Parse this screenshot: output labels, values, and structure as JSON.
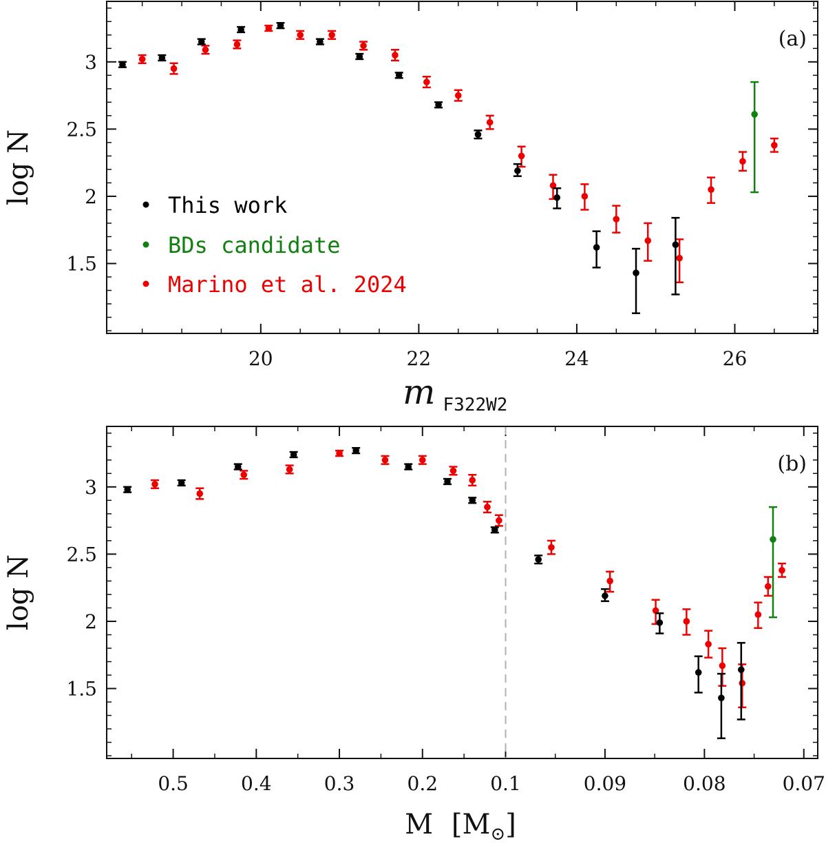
{
  "colors": {
    "this_work": "#000000",
    "bd_candidate": "#108010",
    "marino": "#ee0000",
    "divider": "#b0b0b0"
  },
  "chart_data": [
    {
      "type": "scatter",
      "panel_label": "(a)",
      "xlabel": "m",
      "xlabel_sub": "F322W2",
      "ylabel": "log N",
      "xlim": [
        18.05,
        27.05
      ],
      "ylim": [
        0.98,
        3.45
      ],
      "x_ticks": [
        20,
        22,
        24,
        26
      ],
      "x_tick_labels": [
        "20",
        "22",
        "24",
        "26"
      ],
      "y_ticks": [
        1.5,
        2,
        2.5,
        3
      ],
      "y_tick_labels": [
        "1.5",
        "2",
        "2.5",
        "3"
      ],
      "legend": {
        "position": "left-center",
        "entries": [
          {
            "label": "This work",
            "series": "this_work"
          },
          {
            "label": "BDs candidate",
            "series": "bd_candidate"
          },
          {
            "label": "Marino et al. 2024",
            "series": "marino"
          }
        ]
      },
      "series": [
        {
          "name": "This work",
          "key": "this_work",
          "x": [
            18.25,
            18.75,
            19.25,
            19.75,
            20.25,
            20.75,
            21.25,
            21.75,
            22.25,
            22.75,
            23.25,
            23.75,
            24.25,
            24.75,
            25.25
          ],
          "y": [
            2.98,
            3.03,
            3.15,
            3.24,
            3.27,
            3.15,
            3.04,
            2.9,
            2.68,
            2.46,
            2.19,
            1.99,
            1.62,
            1.43,
            1.64
          ],
          "err_lo": [
            0.02,
            0.02,
            0.02,
            0.02,
            0.02,
            0.02,
            0.02,
            0.02,
            0.02,
            0.03,
            0.04,
            0.08,
            0.15,
            0.3,
            0.37
          ],
          "err_hi": [
            0.02,
            0.02,
            0.02,
            0.02,
            0.02,
            0.02,
            0.02,
            0.02,
            0.02,
            0.03,
            0.05,
            0.07,
            0.12,
            0.18,
            0.2
          ]
        },
        {
          "name": "Marino et al. 2024",
          "key": "marino",
          "x": [
            18.5,
            18.9,
            19.3,
            19.7,
            20.1,
            20.5,
            20.9,
            21.3,
            21.7,
            22.1,
            22.5,
            22.9,
            23.3,
            23.7,
            24.1,
            24.5,
            24.9,
            25.3,
            25.7,
            26.1,
            26.5
          ],
          "y": [
            3.02,
            2.95,
            3.09,
            3.13,
            3.25,
            3.2,
            3.2,
            3.12,
            3.05,
            2.85,
            2.75,
            2.55,
            2.3,
            2.08,
            2.0,
            1.83,
            1.67,
            1.54,
            2.05,
            2.26,
            2.38
          ],
          "err_lo": [
            0.03,
            0.04,
            0.03,
            0.03,
            0.02,
            0.03,
            0.03,
            0.03,
            0.04,
            0.04,
            0.04,
            0.05,
            0.08,
            0.1,
            0.1,
            0.1,
            0.15,
            0.18,
            0.1,
            0.07,
            0.05
          ],
          "err_hi": [
            0.03,
            0.04,
            0.03,
            0.03,
            0.02,
            0.03,
            0.03,
            0.03,
            0.04,
            0.04,
            0.04,
            0.05,
            0.07,
            0.08,
            0.09,
            0.1,
            0.13,
            0.14,
            0.09,
            0.07,
            0.05
          ]
        },
        {
          "name": "BDs candidate",
          "key": "bd_candidate",
          "x": [
            26.25
          ],
          "y": [
            2.61
          ],
          "err_lo": [
            0.58
          ],
          "err_hi": [
            0.24
          ]
        }
      ]
    },
    {
      "type": "scatter",
      "panel_label": "(b)",
      "xlabel": "M",
      "xlabel_unit": "M",
      "xlabel_unit_sub": "⊙",
      "ylabel": "log N",
      "note": "Broken x axis: linear from 0.58 down to 0.1 on the left, expanded scale from 0.1 down to 0.07 on the right (dashed line at 0.1).",
      "x_segments": [
        {
          "from": 0.58,
          "to": 0.1
        },
        {
          "from": 0.1,
          "to": 0.0686
        }
      ],
      "ylim": [
        0.98,
        3.45
      ],
      "x_ticks": [
        0.5,
        0.4,
        0.3,
        0.2,
        0.1,
        0.09,
        0.08,
        0.07
      ],
      "x_tick_labels": [
        "0.5",
        "0.4",
        "0.3",
        "0.2",
        "0.1",
        "0.09",
        "0.08",
        "0.07"
      ],
      "x_minor_ticks": [
        0.55,
        0.45,
        0.35,
        0.25,
        0.15,
        0.095,
        0.085,
        0.075
      ],
      "y_ticks": [
        1.5,
        2,
        2.5,
        3
      ],
      "y_tick_labels": [
        "1.5",
        "2",
        "2.5",
        "3"
      ],
      "divider_x": 0.1,
      "series": [
        {
          "name": "This work",
          "key": "this_work",
          "x": [
            0.555,
            0.49,
            0.422,
            0.355,
            0.28,
            0.217,
            0.17,
            0.14,
            0.113,
            0.0967,
            0.09,
            0.0845,
            0.0806,
            0.0783,
            0.0763
          ],
          "y": [
            2.98,
            3.03,
            3.15,
            3.24,
            3.27,
            3.15,
            3.04,
            2.9,
            2.68,
            2.46,
            2.19,
            1.99,
            1.62,
            1.43,
            1.64
          ],
          "err_lo": [
            0.02,
            0.02,
            0.02,
            0.02,
            0.02,
            0.02,
            0.02,
            0.02,
            0.02,
            0.03,
            0.04,
            0.08,
            0.15,
            0.3,
            0.37
          ],
          "err_hi": [
            0.02,
            0.02,
            0.02,
            0.02,
            0.02,
            0.02,
            0.02,
            0.02,
            0.02,
            0.03,
            0.05,
            0.07,
            0.12,
            0.18,
            0.2
          ]
        },
        {
          "name": "Marino et al. 2024",
          "key": "marino",
          "x": [
            0.522,
            0.468,
            0.415,
            0.36,
            0.3,
            0.245,
            0.2,
            0.163,
            0.14,
            0.122,
            0.108,
            0.0954,
            0.0895,
            0.0849,
            0.0818,
            0.0796,
            0.0782,
            0.0762,
            0.0746,
            0.0736,
            0.0722
          ],
          "y": [
            3.02,
            2.95,
            3.09,
            3.13,
            3.25,
            3.2,
            3.2,
            3.12,
            3.05,
            2.85,
            2.75,
            2.55,
            2.3,
            2.08,
            2.0,
            1.83,
            1.67,
            1.54,
            2.05,
            2.26,
            2.38
          ],
          "err_lo": [
            0.03,
            0.04,
            0.03,
            0.03,
            0.02,
            0.03,
            0.03,
            0.03,
            0.04,
            0.04,
            0.04,
            0.05,
            0.08,
            0.1,
            0.1,
            0.1,
            0.15,
            0.18,
            0.1,
            0.07,
            0.05
          ],
          "err_hi": [
            0.03,
            0.04,
            0.03,
            0.03,
            0.02,
            0.03,
            0.03,
            0.03,
            0.04,
            0.04,
            0.04,
            0.05,
            0.07,
            0.08,
            0.09,
            0.1,
            0.13,
            0.14,
            0.09,
            0.07,
            0.05
          ]
        },
        {
          "name": "BDs candidate",
          "key": "bd_candidate",
          "x": [
            0.0731
          ],
          "y": [
            2.61
          ],
          "err_lo": [
            0.58
          ],
          "err_hi": [
            0.24
          ]
        }
      ]
    }
  ]
}
